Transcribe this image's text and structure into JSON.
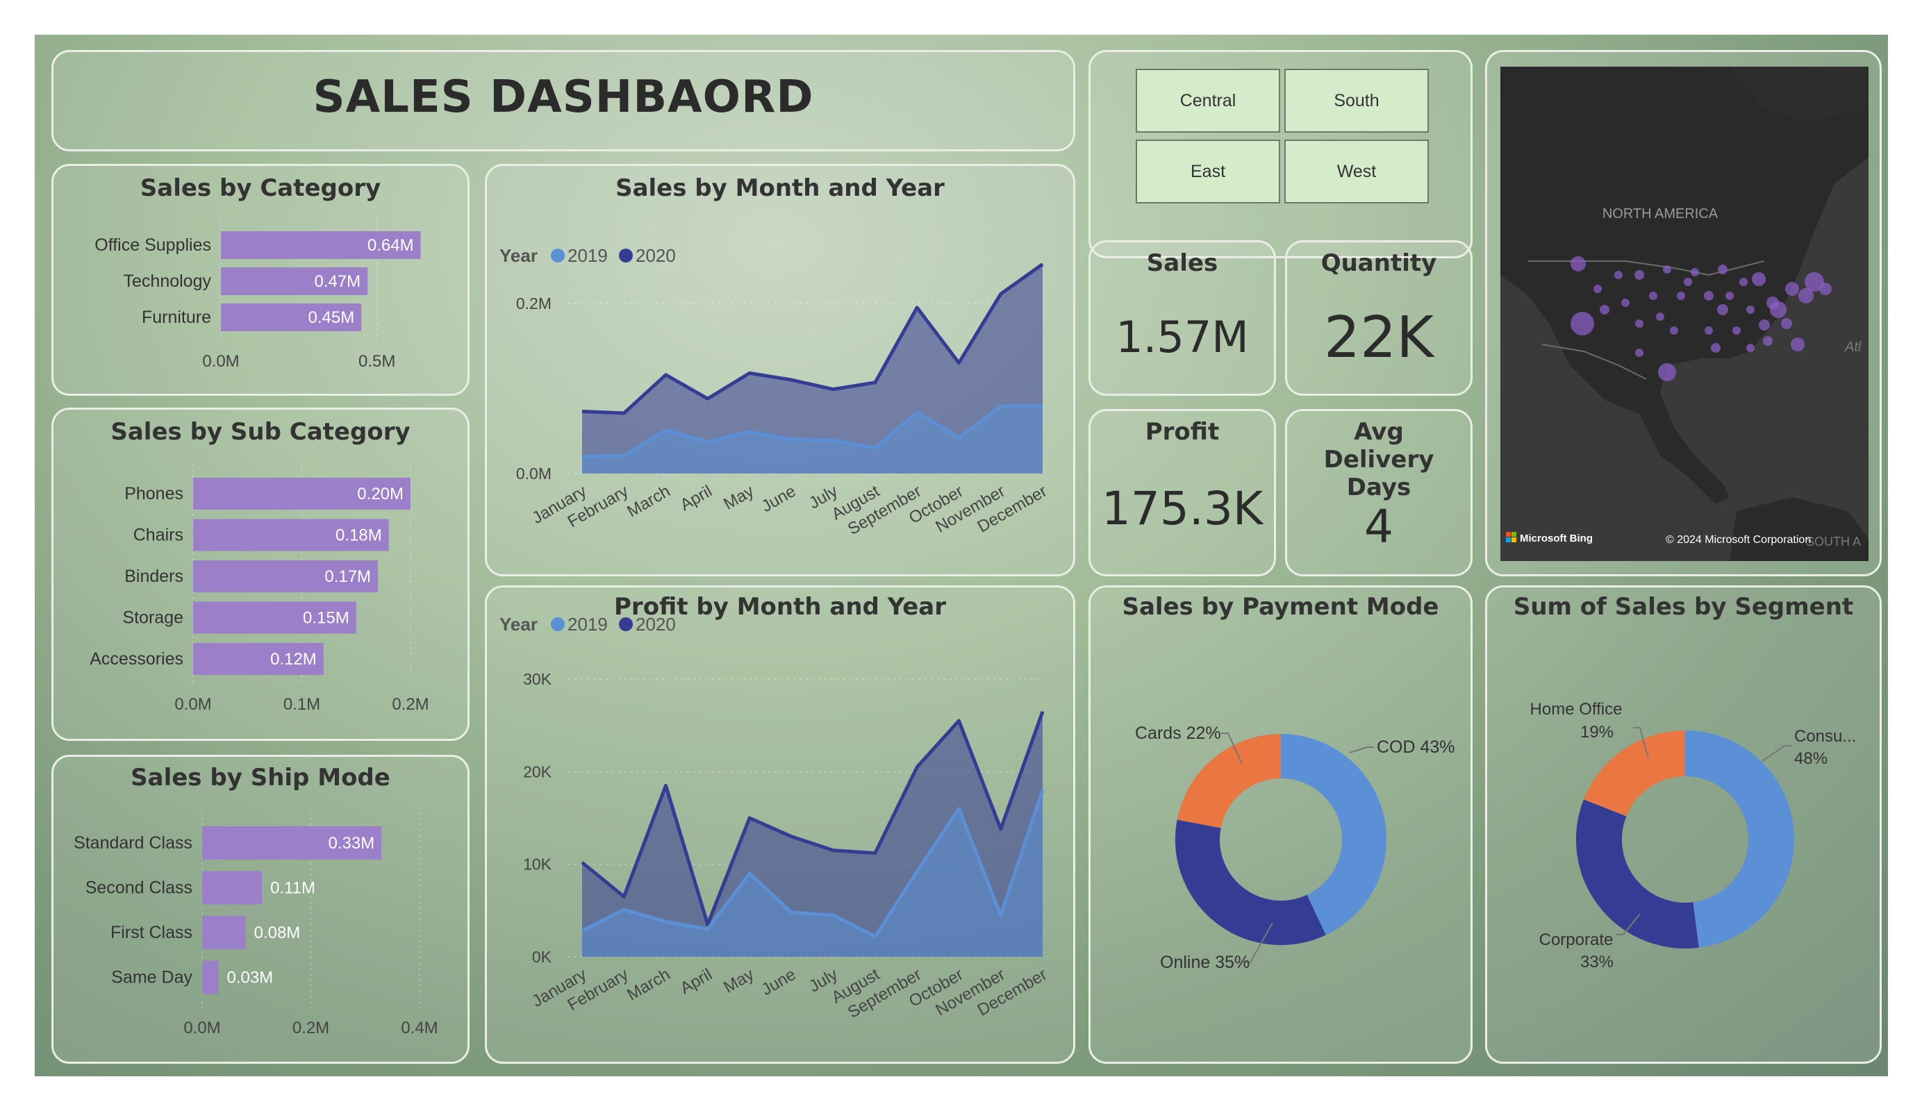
{
  "title": "SALES DASHBAORD",
  "slicers": [
    "Central",
    "South",
    "East",
    "West"
  ],
  "kpis": {
    "sales": {
      "label": "Sales",
      "value": "1.57M"
    },
    "quantity": {
      "label": "Quantity",
      "value": "22K"
    },
    "profit": {
      "label": "Profit",
      "value": "175.3K"
    },
    "delivery": {
      "label": "Avg Delivery Days",
      "value": "4"
    }
  },
  "map": {
    "region_label": "NORTH AMERICA",
    "edge_label_1": "Atl",
    "edge_label_2": "SOUTH A",
    "bing": "Microsoft Bing",
    "copyright": "© 2024 Microsoft Corporation"
  },
  "colors": {
    "bar": "#9b7fc8",
    "y2019": "#5b8fd6",
    "y2020": "#353c93",
    "cards": "#ea7642",
    "cod": "#5b8fd6",
    "online": "#353c93"
  },
  "chart_data": [
    {
      "id": "category",
      "type": "bar",
      "title": "Sales by Category",
      "categories": [
        "Office Supplies",
        "Technology",
        "Furniture"
      ],
      "values": [
        0.64,
        0.47,
        0.45
      ],
      "labels": [
        "0.64M",
        "0.47M",
        "0.45M"
      ],
      "ticks": [
        "0.0M",
        "0.5M"
      ],
      "xlim": [
        0,
        0.75
      ]
    },
    {
      "id": "subcategory",
      "type": "bar",
      "title": "Sales by Sub Category",
      "categories": [
        "Phones",
        "Chairs",
        "Binders",
        "Storage",
        "Accessories"
      ],
      "values": [
        0.2,
        0.18,
        0.17,
        0.15,
        0.12
      ],
      "labels": [
        "0.20M",
        "0.18M",
        "0.17M",
        "0.15M",
        "0.12M"
      ],
      "ticks": [
        "0.0M",
        "0.1M",
        "0.2M"
      ],
      "xlim": [
        0,
        0.2
      ]
    },
    {
      "id": "shipmode",
      "type": "bar",
      "title": "Sales by Ship Mode",
      "categories": [
        "Standard Class",
        "Second Class",
        "First Class",
        "Same Day"
      ],
      "values": [
        0.33,
        0.11,
        0.08,
        0.03
      ],
      "labels": [
        "0.33M",
        "0.11M",
        "0.08M",
        "0.03M"
      ],
      "ticks": [
        "0.0M",
        "0.2M",
        "0.4M"
      ],
      "xlim": [
        0,
        0.4
      ]
    },
    {
      "id": "sales_month",
      "type": "area",
      "title": "Sales by Month and Year",
      "legend_title": "Year",
      "x": [
        "January",
        "February",
        "March",
        "April",
        "May",
        "June",
        "July",
        "August",
        "September",
        "October",
        "November",
        "December"
      ],
      "series": [
        {
          "name": "2019",
          "values": [
            0.02,
            0.021,
            0.051,
            0.037,
            0.049,
            0.04,
            0.039,
            0.03,
            0.072,
            0.042,
            0.079,
            0.079
          ]
        },
        {
          "name": "2020",
          "values": [
            0.073,
            0.071,
            0.116,
            0.088,
            0.118,
            0.11,
            0.099,
            0.107,
            0.195,
            0.13,
            0.211,
            0.246
          ]
        }
      ],
      "ticks": [
        "0.0M",
        "0.2M"
      ],
      "tick_values": [
        0,
        0.2
      ],
      "ylim": [
        0,
        0.27
      ]
    },
    {
      "id": "profit_month",
      "type": "area",
      "title": "Profit by Month and Year",
      "legend_title": "Year",
      "x": [
        "January",
        "February",
        "March",
        "April",
        "May",
        "June",
        "July",
        "August",
        "September",
        "October",
        "November",
        "December"
      ],
      "series": [
        {
          "name": "2019",
          "values": [
            2800,
            5100,
            3800,
            3000,
            9000,
            4800,
            4500,
            2200,
            9200,
            16000,
            4500,
            18000
          ]
        },
        {
          "name": "2020",
          "values": [
            10200,
            6500,
            18500,
            3500,
            15000,
            13000,
            11500,
            11200,
            20500,
            25500,
            13800,
            26500
          ]
        }
      ],
      "ticks": [
        "0K",
        "10K",
        "20K",
        "30K"
      ],
      "tick_values": [
        0,
        10000,
        20000,
        30000
      ],
      "ylim": [
        0,
        30000
      ]
    },
    {
      "id": "payment",
      "type": "pie",
      "title": "Sales by Payment Mode",
      "slices": [
        {
          "name": "COD",
          "value": 43,
          "label": "COD 43%"
        },
        {
          "name": "Online",
          "value": 35,
          "label": "Online 35%"
        },
        {
          "name": "Cards",
          "value": 22,
          "label": "Cards 22%"
        }
      ]
    },
    {
      "id": "segment",
      "type": "pie",
      "title": "Sum of Sales by Segment",
      "slices": [
        {
          "name": "Consumer",
          "value": 48,
          "label_1": "Consu...",
          "label_2": "48%"
        },
        {
          "name": "Corporate",
          "value": 33,
          "label_1": "Corporate",
          "label_2": "33%"
        },
        {
          "name": "Home Office",
          "value": 19,
          "label_1": "Home Office",
          "label_2": "19%"
        }
      ]
    }
  ]
}
